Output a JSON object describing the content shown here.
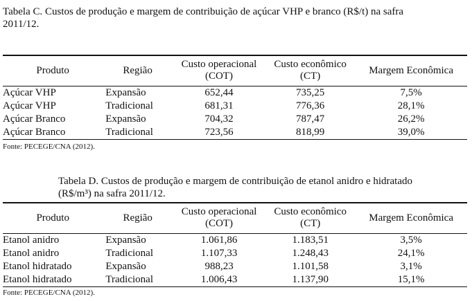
{
  "table_c": {
    "caption_line1": "Tabela C. Custos de produção e margem de contribuição de açúcar VHP e branco (R$/t) na safra",
    "caption_line2": "2011/12.",
    "headers": {
      "produto": "Produto",
      "regiao": "Região",
      "cot_line1": "Custo operacional",
      "cot_line2": "(COT)",
      "ct_line1": "Custo econômico",
      "ct_line2": "(CT)",
      "margem": "Margem Econômica"
    },
    "rows": [
      {
        "produto": "Açúcar VHP",
        "regiao": "Expansão",
        "cot": "652,44",
        "ct": "735,25",
        "margem": "7,5%"
      },
      {
        "produto": "Açúcar VHP",
        "regiao": "Tradicional",
        "cot": "681,31",
        "ct": "776,36",
        "margem": "28,1%"
      },
      {
        "produto": "Açúcar Branco",
        "regiao": "Expansão",
        "cot": "704,32",
        "ct": "787,47",
        "margem": "26,2%"
      },
      {
        "produto": "Açúcar Branco",
        "regiao": "Tradicional",
        "cot": "723,56",
        "ct": "818,99",
        "margem": "39,0%"
      }
    ],
    "source": "Fonte: PECEGE/CNA (2012)."
  },
  "table_d": {
    "caption_line1": "Tabela D. Custos de produção e margem de contribuição de etanol anidro e hidratado",
    "caption_line2": "(R$/m³) na safra 2011/12.",
    "headers": {
      "produto": "Produto",
      "regiao": "Região",
      "cot_line1": "Custo operacional",
      "cot_line2": "(COT)",
      "ct_line1": "Custo econômico",
      "ct_line2": "(CT)",
      "margem": "Margem Econômica"
    },
    "rows": [
      {
        "produto": "Etanol anidro",
        "regiao": "Expansão",
        "cot": "1.061,86",
        "ct": "1.183,51",
        "margem": "3,5%"
      },
      {
        "produto": "Etanol anidro",
        "regiao": "Tradicional",
        "cot": "1.107,33",
        "ct": "1.248,43",
        "margem": "24,1%"
      },
      {
        "produto": "Etanol hidratado",
        "regiao": "Expansão",
        "cot": "988,23",
        "ct": "1.101,58",
        "margem": "3,1%"
      },
      {
        "produto": "Etanol hidratado",
        "regiao": "Tradicional",
        "cot": "1.006,43",
        "ct": "1.137,90",
        "margem": "15,1%"
      }
    ],
    "source": "Fonte: PECEGE/CNA (2012)."
  }
}
